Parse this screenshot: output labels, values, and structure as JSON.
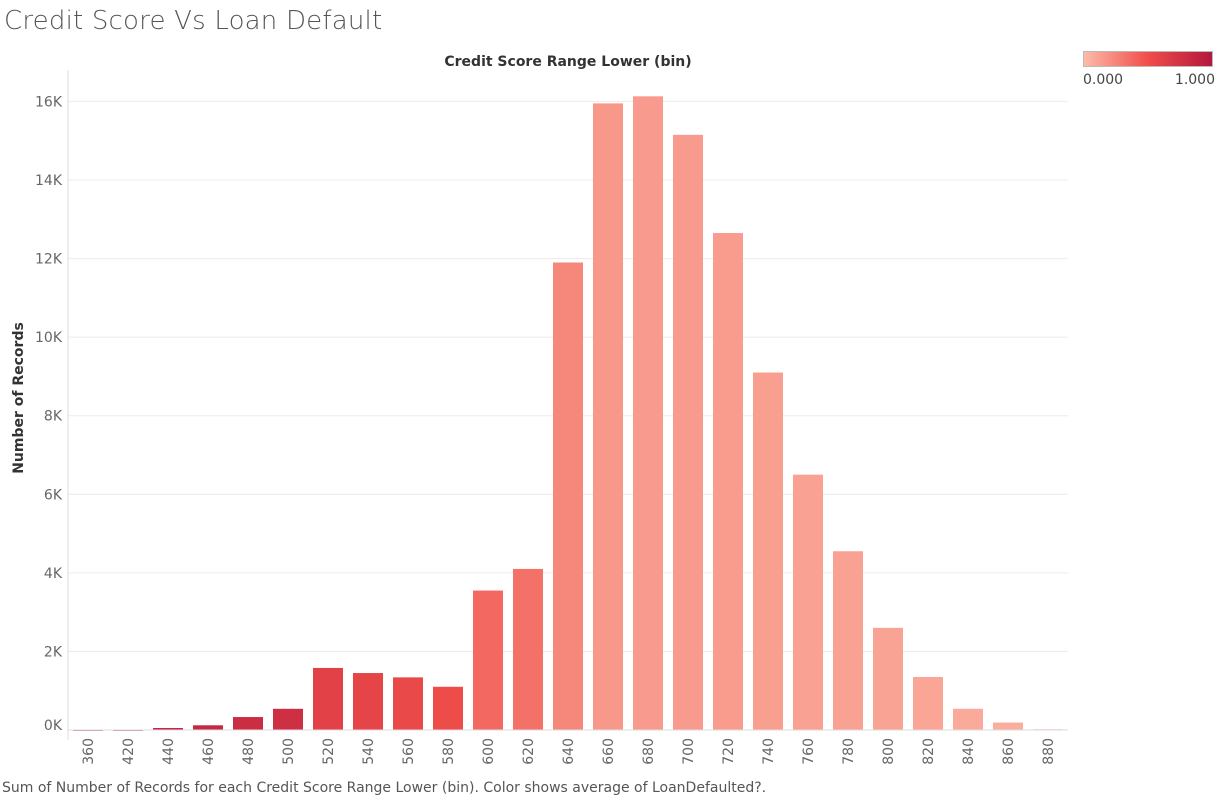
{
  "page": {
    "title": "Credit Score Vs Loan Default",
    "caption": "Sum of Number of Records for each Credit Score Range Lower (bin).  Color shows average of LoanDefaulted?."
  },
  "legend": {
    "min_label": "0.000",
    "max_label": "1.000",
    "color_low": "#FCBBA9",
    "color_mid": "#F04E4A",
    "color_high": "#B3173D"
  },
  "chart_data": {
    "type": "bar",
    "title": "Credit Score Range Lower (bin)",
    "xlabel": "",
    "ylabel": "Number of Records",
    "categories": [
      "360",
      "420",
      "440",
      "460",
      "480",
      "500",
      "520",
      "540",
      "560",
      "580",
      "600",
      "620",
      "640",
      "660",
      "680",
      "700",
      "720",
      "740",
      "760",
      "780",
      "800",
      "820",
      "840",
      "860",
      "880"
    ],
    "values": [
      5,
      5,
      50,
      120,
      330,
      540,
      1580,
      1450,
      1340,
      1100,
      3550,
      4100,
      11900,
      15950,
      16130,
      15150,
      12650,
      9100,
      6500,
      4550,
      2600,
      1350,
      540,
      190,
      20
    ],
    "color_values": [
      0.97,
      0.97,
      0.9,
      0.85,
      0.8,
      0.78,
      0.62,
      0.58,
      0.55,
      0.52,
      0.38,
      0.34,
      0.24,
      0.16,
      0.15,
      0.15,
      0.14,
      0.13,
      0.12,
      0.12,
      0.11,
      0.1,
      0.08,
      0.06,
      0.05
    ],
    "ylim": [
      0,
      16800
    ],
    "yticks": [
      0,
      2000,
      4000,
      6000,
      8000,
      10000,
      12000,
      14000,
      16000
    ],
    "ytick_labels": [
      "0K",
      "2K",
      "4K",
      "6K",
      "8K",
      "10K",
      "12K",
      "14K",
      "16K"
    ],
    "grid": true,
    "legend_position": "top-right"
  }
}
